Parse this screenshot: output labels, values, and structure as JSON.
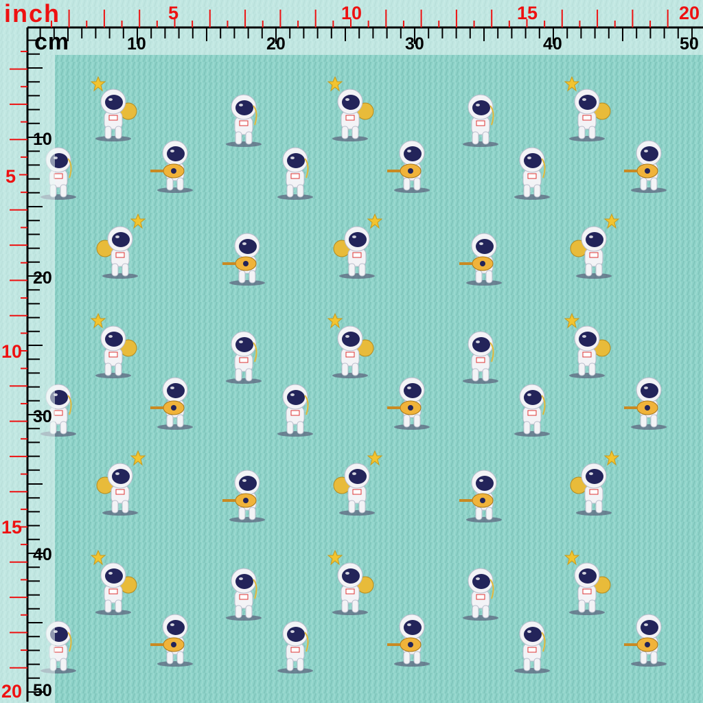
{
  "product": {
    "type": "printed fabric swatch",
    "motif": "astronauts with stars, moons and guitars",
    "background_color": "#8fd3c9"
  },
  "ruler": {
    "inch_unit_label": "inch",
    "cm_unit_label": "cm",
    "inch_top_labels": [
      "5",
      "10",
      "15",
      "20"
    ],
    "cm_top_labels": [
      "10",
      "20",
      "30",
      "40",
      "50"
    ],
    "inch_left_labels": [
      "5",
      "10",
      "15",
      "20"
    ],
    "cm_left_labels": [
      "10",
      "20",
      "30",
      "40",
      "50"
    ],
    "inch_color": "#ee1111",
    "cm_color": "#000000"
  }
}
